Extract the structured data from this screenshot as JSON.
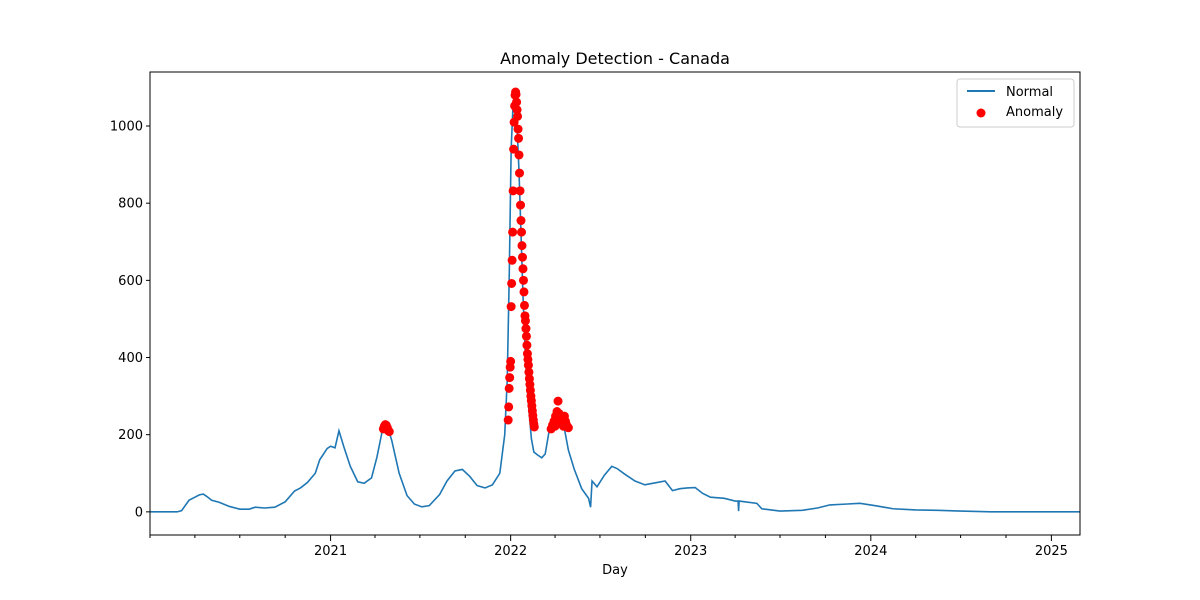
{
  "chart_data": {
    "type": "line",
    "title": "Anomaly Detection - Canada",
    "xlabel": "Day",
    "ylabel": "",
    "xlim": [
      "2020-01-01",
      "2025-02-28"
    ],
    "ylim": [
      -60,
      1140
    ],
    "x_ticks": [
      "2021",
      "2022",
      "2023",
      "2024",
      "2025"
    ],
    "y_ticks": [
      0,
      200,
      400,
      600,
      800,
      1000
    ],
    "legend": {
      "position": "top-right",
      "entries": [
        "Normal",
        "Anomaly"
      ]
    },
    "colors": {
      "normal": "#1f77b4",
      "anomaly": "#ff0000"
    },
    "series": [
      {
        "name": "Normal",
        "type": "line",
        "points": [
          [
            "2020-01-01",
            0
          ],
          [
            "2020-02-25",
            0
          ],
          [
            "2020-03-05",
            3
          ],
          [
            "2020-03-20",
            30
          ],
          [
            "2020-04-01",
            38
          ],
          [
            "2020-04-10",
            44
          ],
          [
            "2020-04-18",
            46
          ],
          [
            "2020-04-25",
            40
          ],
          [
            "2020-05-05",
            30
          ],
          [
            "2020-05-20",
            25
          ],
          [
            "2020-06-10",
            14
          ],
          [
            "2020-07-01",
            7
          ],
          [
            "2020-07-20",
            7
          ],
          [
            "2020-08-01",
            12
          ],
          [
            "2020-08-20",
            10
          ],
          [
            "2020-09-10",
            12
          ],
          [
            "2020-10-01",
            26
          ],
          [
            "2020-10-20",
            54
          ],
          [
            "2020-11-01",
            62
          ],
          [
            "2020-11-15",
            76
          ],
          [
            "2020-12-01",
            100
          ],
          [
            "2020-12-10",
            135
          ],
          [
            "2020-12-25",
            164
          ],
          [
            "2021-01-01",
            170
          ],
          [
            "2021-01-10",
            166
          ],
          [
            "2021-01-18",
            210
          ],
          [
            "2021-01-28",
            168
          ],
          [
            "2021-02-10",
            118
          ],
          [
            "2021-02-25",
            78
          ],
          [
            "2021-03-10",
            74
          ],
          [
            "2021-03-25",
            88
          ],
          [
            "2021-04-05",
            142
          ],
          [
            "2021-04-15",
            205
          ],
          [
            "2021-04-22",
            222
          ],
          [
            "2021-04-28",
            214
          ],
          [
            "2021-05-05",
            185
          ],
          [
            "2021-05-20",
            100
          ],
          [
            "2021-06-05",
            42
          ],
          [
            "2021-06-20",
            20
          ],
          [
            "2021-07-05",
            13
          ],
          [
            "2021-07-20",
            16
          ],
          [
            "2021-08-10",
            45
          ],
          [
            "2021-08-25",
            80
          ],
          [
            "2021-09-10",
            106
          ],
          [
            "2021-09-25",
            110
          ],
          [
            "2021-10-10",
            92
          ],
          [
            "2021-10-25",
            68
          ],
          [
            "2021-11-10",
            62
          ],
          [
            "2021-11-25",
            70
          ],
          [
            "2021-12-10",
            100
          ],
          [
            "2021-12-20",
            200
          ],
          [
            "2021-12-25",
            340
          ],
          [
            "2021-12-29",
            600
          ],
          [
            "2022-01-02",
            940
          ],
          [
            "2022-01-06",
            1060
          ],
          [
            "2022-01-10",
            1080
          ],
          [
            "2022-01-14",
            1000
          ],
          [
            "2022-01-18",
            880
          ],
          [
            "2022-01-22",
            720
          ],
          [
            "2022-01-26",
            560
          ],
          [
            "2022-01-30",
            430
          ],
          [
            "2022-02-03",
            330
          ],
          [
            "2022-02-08",
            250
          ],
          [
            "2022-02-12",
            190
          ],
          [
            "2022-02-17",
            155
          ],
          [
            "2022-02-24",
            148
          ],
          [
            "2022-03-05",
            140
          ],
          [
            "2022-03-12",
            150
          ],
          [
            "2022-03-20",
            210
          ],
          [
            "2022-03-28",
            232
          ],
          [
            "2022-04-05",
            255
          ],
          [
            "2022-04-12",
            240
          ],
          [
            "2022-04-20",
            215
          ],
          [
            "2022-04-28",
            160
          ],
          [
            "2022-05-10",
            110
          ],
          [
            "2022-05-25",
            60
          ],
          [
            "2022-06-08",
            35
          ],
          [
            "2022-06-12",
            12
          ],
          [
            "2022-06-15",
            80
          ],
          [
            "2022-06-25",
            65
          ],
          [
            "2022-07-10",
            95
          ],
          [
            "2022-07-25",
            118
          ],
          [
            "2022-08-05",
            112
          ],
          [
            "2022-08-20",
            98
          ],
          [
            "2022-09-10",
            80
          ],
          [
            "2022-09-30",
            70
          ],
          [
            "2022-10-20",
            75
          ],
          [
            "2022-11-10",
            80
          ],
          [
            "2022-11-25",
            55
          ],
          [
            "2022-12-10",
            60
          ],
          [
            "2022-12-25",
            62
          ],
          [
            "2023-01-10",
            63
          ],
          [
            "2023-01-25",
            48
          ],
          [
            "2023-02-10",
            38
          ],
          [
            "2023-03-10",
            35
          ],
          [
            "2023-04-01",
            28
          ],
          [
            "2023-04-07",
            28
          ],
          [
            "2023-04-08",
            2
          ],
          [
            "2023-04-09",
            28
          ],
          [
            "2023-05-15",
            22
          ],
          [
            "2023-05-25",
            8
          ],
          [
            "2023-07-01",
            2
          ],
          [
            "2023-08-15",
            4
          ],
          [
            "2023-09-15",
            10
          ],
          [
            "2023-10-10",
            18
          ],
          [
            "2023-11-10",
            20
          ],
          [
            "2023-12-10",
            22
          ],
          [
            "2024-01-10",
            16
          ],
          [
            "2024-02-15",
            8
          ],
          [
            "2024-04-01",
            5
          ],
          [
            "2024-05-15",
            4
          ],
          [
            "2024-07-01",
            2
          ],
          [
            "2024-09-01",
            0
          ],
          [
            "2025-02-28",
            0
          ]
        ]
      },
      {
        "name": "Anomaly",
        "type": "scatter",
        "points": [
          [
            "2021-04-18",
            215
          ],
          [
            "2021-04-20",
            222
          ],
          [
            "2021-04-22",
            226
          ],
          [
            "2021-04-24",
            224
          ],
          [
            "2021-04-26",
            218
          ],
          [
            "2021-04-28",
            210
          ],
          [
            "2021-04-30",
            208
          ],
          [
            "2021-12-27",
            238
          ],
          [
            "2021-12-28",
            272
          ],
          [
            "2021-12-29",
            320
          ],
          [
            "2021-12-30",
            348
          ],
          [
            "2021-12-31",
            375
          ],
          [
            "2022-01-01",
            390
          ],
          [
            "2022-01-02",
            532
          ],
          [
            "2022-01-03",
            592
          ],
          [
            "2022-01-04",
            652
          ],
          [
            "2022-01-05",
            725
          ],
          [
            "2022-01-06",
            832
          ],
          [
            "2022-01-07",
            940
          ],
          [
            "2022-01-08",
            1010
          ],
          [
            "2022-01-09",
            1052
          ],
          [
            "2022-01-10",
            1080
          ],
          [
            "2022-01-11",
            1088
          ],
          [
            "2022-01-12",
            1082
          ],
          [
            "2022-01-13",
            1062
          ],
          [
            "2022-01-14",
            1042
          ],
          [
            "2022-01-15",
            1025
          ],
          [
            "2022-01-16",
            992
          ],
          [
            "2022-01-17",
            968
          ],
          [
            "2022-01-18",
            925
          ],
          [
            "2022-01-19",
            878
          ],
          [
            "2022-01-20",
            832
          ],
          [
            "2022-01-21",
            795
          ],
          [
            "2022-01-22",
            755
          ],
          [
            "2022-01-23",
            725
          ],
          [
            "2022-01-24",
            690
          ],
          [
            "2022-01-25",
            660
          ],
          [
            "2022-01-26",
            630
          ],
          [
            "2022-01-27",
            600
          ],
          [
            "2022-01-28",
            570
          ],
          [
            "2022-01-29",
            535
          ],
          [
            "2022-01-30",
            508
          ],
          [
            "2022-01-31",
            495
          ],
          [
            "2022-02-01",
            475
          ],
          [
            "2022-02-02",
            455
          ],
          [
            "2022-02-03",
            432
          ],
          [
            "2022-02-04",
            410
          ],
          [
            "2022-02-05",
            395
          ],
          [
            "2022-02-06",
            380
          ],
          [
            "2022-02-07",
            362
          ],
          [
            "2022-02-08",
            345
          ],
          [
            "2022-02-09",
            330
          ],
          [
            "2022-02-10",
            315
          ],
          [
            "2022-02-11",
            300
          ],
          [
            "2022-02-12",
            288
          ],
          [
            "2022-02-13",
            275
          ],
          [
            "2022-02-14",
            262
          ],
          [
            "2022-02-15",
            250
          ],
          [
            "2022-02-16",
            238
          ],
          [
            "2022-02-17",
            228
          ],
          [
            "2022-02-18",
            220
          ],
          [
            "2022-03-24",
            215
          ],
          [
            "2022-03-27",
            225
          ],
          [
            "2022-03-30",
            235
          ],
          [
            "2022-04-02",
            248
          ],
          [
            "2022-04-05",
            260
          ],
          [
            "2022-04-07",
            287
          ],
          [
            "2022-04-09",
            255
          ],
          [
            "2022-04-12",
            245
          ],
          [
            "2022-04-14",
            238
          ],
          [
            "2022-04-17",
            230
          ],
          [
            "2022-04-20",
            248
          ],
          [
            "2022-04-22",
            235
          ],
          [
            "2022-04-24",
            226
          ],
          [
            "2022-04-26",
            220
          ],
          [
            "2022-04-28",
            218
          ],
          [
            "2022-04-18",
            222
          ],
          [
            "2022-04-01",
            222
          ],
          [
            "2022-04-10",
            230
          ]
        ]
      }
    ]
  }
}
